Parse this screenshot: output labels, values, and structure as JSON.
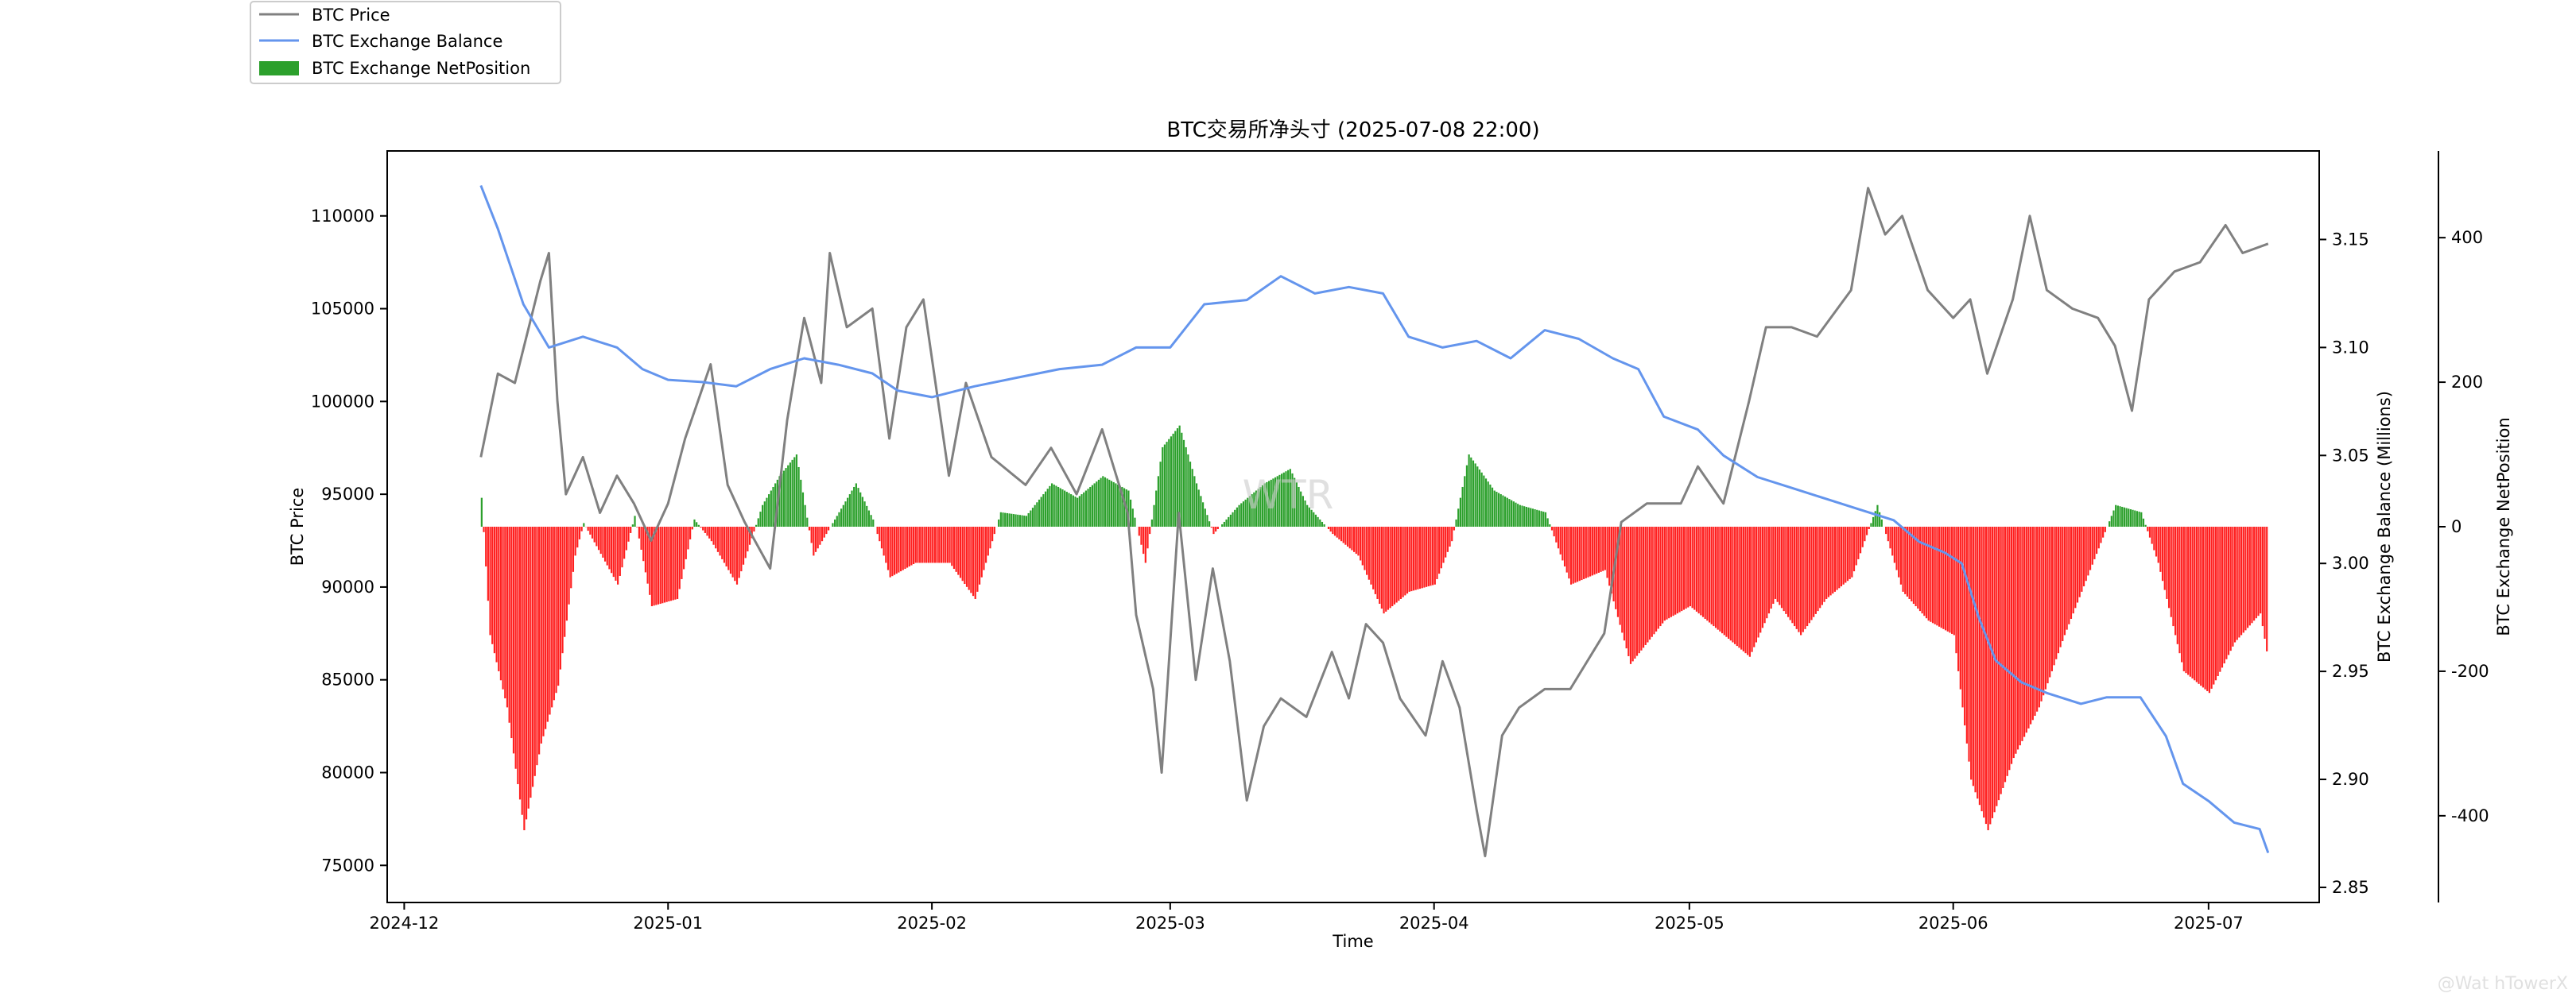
{
  "chart_data": {
    "type": "line",
    "title": "BTC交易所净头寸 (2025-07-08 22:00)",
    "xlabel": "Time",
    "x_ticks": [
      "2024-12",
      "2025-01",
      "2025-02",
      "2025-03",
      "2025-04",
      "2025-05",
      "2025-06",
      "2025-07"
    ],
    "x_range": [
      "2024-11-29",
      "2025-07-14"
    ],
    "y_left": {
      "label": "BTC Price",
      "range": [
        73000,
        113500
      ],
      "ticks": [
        75000,
        80000,
        85000,
        90000,
        95000,
        100000,
        105000,
        110000
      ]
    },
    "y_right": {
      "label": "BTC Exchange Balance (Millions)",
      "range": [
        2.843,
        3.191
      ],
      "ticks": [
        2.85,
        2.9,
        2.95,
        3.0,
        3.05,
        3.1,
        3.15
      ]
    },
    "y_right2": {
      "label": "BTC Exchange NetPosition",
      "range": [
        -520,
        520
      ],
      "ticks": [
        -400,
        -200,
        0,
        200,
        400
      ]
    },
    "legend": {
      "placement": "top-left",
      "entries": [
        "BTC Price",
        "BTC Exchange Balance",
        "BTC Exchange NetPosition"
      ]
    },
    "grid": false,
    "series": [
      {
        "name": "BTC Price",
        "color": "#808080",
        "axis": "left",
        "points": [
          [
            "2024-12-10",
            97000
          ],
          [
            "2024-12-12",
            101500
          ],
          [
            "2024-12-14",
            101000
          ],
          [
            "2024-12-17",
            106500
          ],
          [
            "2024-12-18",
            108000
          ],
          [
            "2024-12-19",
            100000
          ],
          [
            "2024-12-20",
            95000
          ],
          [
            "2024-12-22",
            97000
          ],
          [
            "2024-12-24",
            94000
          ],
          [
            "2024-12-26",
            96000
          ],
          [
            "2024-12-28",
            94500
          ],
          [
            "2024-12-30",
            92500
          ],
          [
            "2025-01-01",
            94500
          ],
          [
            "2025-01-03",
            98000
          ],
          [
            "2025-01-06",
            102000
          ],
          [
            "2025-01-08",
            95500
          ],
          [
            "2025-01-10",
            93500
          ],
          [
            "2025-01-13",
            91000
          ],
          [
            "2025-01-15",
            99000
          ],
          [
            "2025-01-17",
            104500
          ],
          [
            "2025-01-19",
            101000
          ],
          [
            "2025-01-20",
            108000
          ],
          [
            "2025-01-22",
            104000
          ],
          [
            "2025-01-25",
            105000
          ],
          [
            "2025-01-27",
            98000
          ],
          [
            "2025-01-29",
            104000
          ],
          [
            "2025-01-31",
            105500
          ],
          [
            "2025-02-03",
            96000
          ],
          [
            "2025-02-05",
            101000
          ],
          [
            "2025-02-08",
            97000
          ],
          [
            "2025-02-12",
            95500
          ],
          [
            "2025-02-15",
            97500
          ],
          [
            "2025-02-18",
            95000
          ],
          [
            "2025-02-21",
            98500
          ],
          [
            "2025-02-24",
            94000
          ],
          [
            "2025-02-25",
            88500
          ],
          [
            "2025-02-27",
            84500
          ],
          [
            "2025-02-28",
            80000
          ],
          [
            "2025-03-02",
            94000
          ],
          [
            "2025-03-04",
            85000
          ],
          [
            "2025-03-06",
            91000
          ],
          [
            "2025-03-08",
            86000
          ],
          [
            "2025-03-10",
            78500
          ],
          [
            "2025-03-12",
            82500
          ],
          [
            "2025-03-14",
            84000
          ],
          [
            "2025-03-17",
            83000
          ],
          [
            "2025-03-20",
            86500
          ],
          [
            "2025-03-22",
            84000
          ],
          [
            "2025-03-24",
            88000
          ],
          [
            "2025-03-26",
            87000
          ],
          [
            "2025-03-28",
            84000
          ],
          [
            "2025-03-31",
            82000
          ],
          [
            "2025-04-02",
            86000
          ],
          [
            "2025-04-04",
            83500
          ],
          [
            "2025-04-06",
            78000
          ],
          [
            "2025-04-07",
            75500
          ],
          [
            "2025-04-09",
            82000
          ],
          [
            "2025-04-11",
            83500
          ],
          [
            "2025-04-14",
            84500
          ],
          [
            "2025-04-17",
            84500
          ],
          [
            "2025-04-21",
            87500
          ],
          [
            "2025-04-23",
            93500
          ],
          [
            "2025-04-26",
            94500
          ],
          [
            "2025-04-30",
            94500
          ],
          [
            "2025-05-02",
            96500
          ],
          [
            "2025-05-05",
            94500
          ],
          [
            "2025-05-08",
            100000
          ],
          [
            "2025-05-10",
            104000
          ],
          [
            "2025-05-13",
            104000
          ],
          [
            "2025-05-16",
            103500
          ],
          [
            "2025-05-20",
            106000
          ],
          [
            "2025-05-22",
            111500
          ],
          [
            "2025-05-24",
            109000
          ],
          [
            "2025-05-26",
            110000
          ],
          [
            "2025-05-29",
            106000
          ],
          [
            "2025-06-01",
            104500
          ],
          [
            "2025-06-03",
            105500
          ],
          [
            "2025-06-05",
            101500
          ],
          [
            "2025-06-08",
            105500
          ],
          [
            "2025-06-10",
            110000
          ],
          [
            "2025-06-12",
            106000
          ],
          [
            "2025-06-15",
            105000
          ],
          [
            "2025-06-18",
            104500
          ],
          [
            "2025-06-20",
            103000
          ],
          [
            "2025-06-22",
            99500
          ],
          [
            "2025-06-24",
            105500
          ],
          [
            "2025-06-27",
            107000
          ],
          [
            "2025-06-30",
            107500
          ],
          [
            "2025-07-03",
            109500
          ],
          [
            "2025-07-05",
            108000
          ],
          [
            "2025-07-08",
            108500
          ]
        ]
      },
      {
        "name": "BTC Exchange Balance",
        "color": "#6495ED",
        "axis": "right",
        "points": [
          [
            "2024-12-10",
            3.175
          ],
          [
            "2024-12-12",
            3.155
          ],
          [
            "2024-12-15",
            3.12
          ],
          [
            "2024-12-18",
            3.1
          ],
          [
            "2024-12-22",
            3.105
          ],
          [
            "2024-12-26",
            3.1
          ],
          [
            "2024-12-29",
            3.09
          ],
          [
            "2025-01-01",
            3.085
          ],
          [
            "2025-01-05",
            3.084
          ],
          [
            "2025-01-09",
            3.082
          ],
          [
            "2025-01-13",
            3.09
          ],
          [
            "2025-01-17",
            3.095
          ],
          [
            "2025-01-21",
            3.092
          ],
          [
            "2025-01-25",
            3.088
          ],
          [
            "2025-01-28",
            3.08
          ],
          [
            "2025-02-01",
            3.077
          ],
          [
            "2025-02-06",
            3.082
          ],
          [
            "2025-02-11",
            3.086
          ],
          [
            "2025-02-16",
            3.09
          ],
          [
            "2025-02-21",
            3.092
          ],
          [
            "2025-02-25",
            3.1
          ],
          [
            "2025-03-01",
            3.1
          ],
          [
            "2025-03-05",
            3.12
          ],
          [
            "2025-03-10",
            3.122
          ],
          [
            "2025-03-14",
            3.133
          ],
          [
            "2025-03-18",
            3.125
          ],
          [
            "2025-03-22",
            3.128
          ],
          [
            "2025-03-26",
            3.125
          ],
          [
            "2025-03-29",
            3.105
          ],
          [
            "2025-04-02",
            3.1
          ],
          [
            "2025-04-06",
            3.103
          ],
          [
            "2025-04-10",
            3.095
          ],
          [
            "2025-04-14",
            3.108
          ],
          [
            "2025-04-18",
            3.104
          ],
          [
            "2025-04-22",
            3.095
          ],
          [
            "2025-04-25",
            3.09
          ],
          [
            "2025-04-28",
            3.068
          ],
          [
            "2025-05-02",
            3.062
          ],
          [
            "2025-05-05",
            3.05
          ],
          [
            "2025-05-09",
            3.04
          ],
          [
            "2025-05-13",
            3.035
          ],
          [
            "2025-05-17",
            3.03
          ],
          [
            "2025-05-21",
            3.025
          ],
          [
            "2025-05-25",
            3.02
          ],
          [
            "2025-05-28",
            3.01
          ],
          [
            "2025-05-31",
            3.005
          ],
          [
            "2025-06-02",
            3.0
          ],
          [
            "2025-06-04",
            2.975
          ],
          [
            "2025-06-06",
            2.955
          ],
          [
            "2025-06-09",
            2.945
          ],
          [
            "2025-06-12",
            2.94
          ],
          [
            "2025-06-16",
            2.935
          ],
          [
            "2025-06-19",
            2.938
          ],
          [
            "2025-06-23",
            2.938
          ],
          [
            "2025-06-26",
            2.92
          ],
          [
            "2025-06-28",
            2.898
          ],
          [
            "2025-07-01",
            2.89
          ],
          [
            "2025-07-04",
            2.88
          ],
          [
            "2025-07-07",
            2.877
          ],
          [
            "2025-07-08",
            2.866
          ]
        ]
      },
      {
        "name": "BTC Exchange NetPosition",
        "color_positive": "#2ca02c",
        "color_negative": "#ff2020",
        "axis": "right2",
        "type": "bar",
        "points": [
          [
            "2024-12-10",
            40
          ],
          [
            "2024-12-11",
            -150
          ],
          [
            "2024-12-13",
            -250
          ],
          [
            "2024-12-15",
            -420
          ],
          [
            "2024-12-17",
            -300
          ],
          [
            "2024-12-19",
            -220
          ],
          [
            "2024-12-21",
            -40
          ],
          [
            "2024-12-22",
            5
          ],
          [
            "2024-12-26",
            -80
          ],
          [
            "2024-12-28",
            15
          ],
          [
            "2024-12-30",
            -110
          ],
          [
            "2025-01-02",
            -100
          ],
          [
            "2025-01-04",
            10
          ],
          [
            "2025-01-06",
            -20
          ],
          [
            "2025-01-09",
            -80
          ],
          [
            "2025-01-12",
            30
          ],
          [
            "2025-01-14",
            70
          ],
          [
            "2025-01-16",
            100
          ],
          [
            "2025-01-18",
            -40
          ],
          [
            "2025-01-21",
            20
          ],
          [
            "2025-01-23",
            60
          ],
          [
            "2025-01-25",
            10
          ],
          [
            "2025-01-27",
            -70
          ],
          [
            "2025-01-30",
            -50
          ],
          [
            "2025-02-03",
            -50
          ],
          [
            "2025-02-06",
            -100
          ],
          [
            "2025-02-09",
            20
          ],
          [
            "2025-02-12",
            15
          ],
          [
            "2025-02-15",
            60
          ],
          [
            "2025-02-18",
            40
          ],
          [
            "2025-02-21",
            70
          ],
          [
            "2025-02-24",
            50
          ],
          [
            "2025-02-26",
            -50
          ],
          [
            "2025-02-28",
            110
          ],
          [
            "2025-03-02",
            140
          ],
          [
            "2025-03-04",
            60
          ],
          [
            "2025-03-06",
            -10
          ],
          [
            "2025-03-09",
            30
          ],
          [
            "2025-03-12",
            60
          ],
          [
            "2025-03-15",
            80
          ],
          [
            "2025-03-17",
            30
          ],
          [
            "2025-03-20",
            -10
          ],
          [
            "2025-03-23",
            -40
          ],
          [
            "2025-03-26",
            -120
          ],
          [
            "2025-03-29",
            -90
          ],
          [
            "2025-04-01",
            -80
          ],
          [
            "2025-04-03",
            -20
          ],
          [
            "2025-04-05",
            100
          ],
          [
            "2025-04-08",
            50
          ],
          [
            "2025-04-11",
            30
          ],
          [
            "2025-04-14",
            20
          ],
          [
            "2025-04-17",
            -80
          ],
          [
            "2025-04-21",
            -60
          ],
          [
            "2025-04-24",
            -190
          ],
          [
            "2025-04-28",
            -130
          ],
          [
            "2025-05-01",
            -110
          ],
          [
            "2025-05-05",
            -150
          ],
          [
            "2025-05-08",
            -180
          ],
          [
            "2025-05-11",
            -100
          ],
          [
            "2025-05-14",
            -150
          ],
          [
            "2025-05-17",
            -100
          ],
          [
            "2025-05-20",
            -70
          ],
          [
            "2025-05-23",
            30
          ],
          [
            "2025-05-26",
            -90
          ],
          [
            "2025-05-29",
            -130
          ],
          [
            "2025-06-01",
            -150
          ],
          [
            "2025-06-03",
            -350
          ],
          [
            "2025-06-05",
            -420
          ],
          [
            "2025-06-08",
            -320
          ],
          [
            "2025-06-11",
            -250
          ],
          [
            "2025-06-14",
            -150
          ],
          [
            "2025-06-17",
            -60
          ],
          [
            "2025-06-20",
            30
          ],
          [
            "2025-06-23",
            20
          ],
          [
            "2025-06-25",
            -50
          ],
          [
            "2025-06-28",
            -200
          ],
          [
            "2025-07-01",
            -230
          ],
          [
            "2025-07-04",
            -160
          ],
          [
            "2025-07-07",
            -120
          ],
          [
            "2025-07-08",
            -190
          ]
        ]
      }
    ]
  },
  "watermark": "WTR",
  "credit": "@Wat hTowerX"
}
